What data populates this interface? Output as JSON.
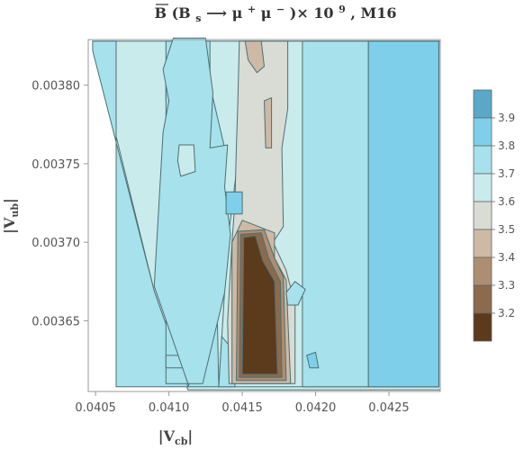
{
  "chart_data": {
    "type": "contour",
    "title_parts": {
      "base": "B",
      "open": "(B",
      "sub": "s",
      "arrow": " ⟶ μ",
      "plus": "+",
      "mu2": " μ",
      "minus": "−",
      "close": ")× 10",
      "exp": "9",
      "tail": ", M16"
    },
    "xlabel": {
      "main": "|V",
      "sub": "cb",
      "end": "|"
    },
    "ylabel": {
      "main": "|V",
      "sub": "ub",
      "end": "|"
    },
    "xlim": [
      0.04045,
      0.04285
    ],
    "ylim": [
      0.003605,
      0.003829
    ],
    "x_ticks": [
      {
        "value": 0.0405,
        "label": "0.0405"
      },
      {
        "value": 0.041,
        "label": "0.0410"
      },
      {
        "value": 0.0415,
        "label": "0.0415"
      },
      {
        "value": 0.042,
        "label": "0.0420"
      },
      {
        "value": 0.0425,
        "label": "0.0425"
      }
    ],
    "y_ticks": [
      {
        "value": 0.00365,
        "label": "0.00365"
      },
      {
        "value": 0.0037,
        "label": "0.00370"
      },
      {
        "value": 0.00375,
        "label": "0.00375"
      },
      {
        "value": 0.0038,
        "label": "0.00380"
      }
    ],
    "legend": {
      "placement": "right",
      "levels": [
        {
          "label": "3.9",
          "color": "#5aa8c8"
        },
        {
          "label": "3.8",
          "color": "#7ecfe9"
        },
        {
          "label": "3.7",
          "color": "#a6e1ec"
        },
        {
          "label": "3.6",
          "color": "#c9ebec"
        },
        {
          "label": "3.5",
          "color": "#d8dcd4"
        },
        {
          "label": "3.4",
          "color": "#cdb9a6"
        },
        {
          "label": "3.3",
          "color": "#ad8e73"
        },
        {
          "label": "3.2",
          "color": "#8b6a4e"
        },
        {
          "label": "",
          "color": "#5c3a1c"
        }
      ]
    },
    "regions": [
      {
        "level": "3.6",
        "color": "#c9ebec",
        "points": [
          [
            0.04048,
            0.003828
          ],
          [
            0.04285,
            0.003828
          ],
          [
            0.04285,
            0.003606
          ],
          [
            0.04113,
            0.003606
          ],
          [
            0.0409,
            0.003669
          ]
        ]
      },
      {
        "level": "3.7",
        "color": "#a6e1ec",
        "points": [
          [
            0.04048,
            0.003828
          ],
          [
            0.04064,
            0.003828
          ],
          [
            0.04064,
            0.003608
          ],
          [
            0.04113,
            0.003608
          ],
          [
            0.0409,
            0.003669
          ],
          [
            0.04048,
            0.003822
          ]
        ]
      },
      {
        "level": "3.7",
        "color": "#a6e1ec",
        "points": [
          [
            0.04098,
            0.003828
          ],
          [
            0.04128,
            0.003828
          ],
          [
            0.04128,
            0.0038
          ],
          [
            0.04118,
            0.00379
          ],
          [
            0.04098,
            0.00379
          ]
        ]
      },
      {
        "level": "3.7",
        "color": "#a6e1ec",
        "points": [
          [
            0.04098,
            0.0038
          ],
          [
            0.04098,
            0.00361
          ],
          [
            0.04128,
            0.00361
          ],
          [
            0.04128,
            0.00368
          ],
          [
            0.04135,
            0.00372
          ],
          [
            0.04138,
            0.00376
          ],
          [
            0.04128,
            0.0038
          ]
        ]
      },
      {
        "level": "3.6",
        "color": "#c9ebec",
        "points": [
          [
            0.0415,
            0.003828
          ],
          [
            0.04284,
            0.003828
          ],
          [
            0.04284,
            0.003608
          ],
          [
            0.04134,
            0.003608
          ],
          [
            0.0414,
            0.0037
          ],
          [
            0.04148,
            0.00376
          ]
        ]
      },
      {
        "level": "3.7",
        "color": "#a6e1ec",
        "points": [
          [
            0.04236,
            0.003828
          ],
          [
            0.04284,
            0.003828
          ],
          [
            0.04284,
            0.003608
          ],
          [
            0.04236,
            0.003608
          ]
        ]
      },
      {
        "level": "3.7",
        "color": "#a6e1ec",
        "points": [
          [
            0.04191,
            0.003828
          ],
          [
            0.04236,
            0.003828
          ],
          [
            0.04236,
            0.003608
          ],
          [
            0.04191,
            0.003608
          ]
        ]
      },
      {
        "level": "3.7",
        "color": "#a6e1ec",
        "points": [
          [
            0.04113,
            0.003608
          ],
          [
            0.04134,
            0.003608
          ],
          [
            0.04133,
            0.00365
          ],
          [
            0.04118,
            0.00362
          ]
        ]
      },
      {
        "level": "3.7",
        "color": "#a6e1ec",
        "points": [
          [
            0.04134,
            0.003608
          ],
          [
            0.04145,
            0.003608
          ],
          [
            0.04145,
            0.00363
          ],
          [
            0.04136,
            0.00364
          ]
        ]
      },
      {
        "level": "3.7",
        "color": "#a6e1ec",
        "points": [
          [
            0.04098,
            0.003628
          ],
          [
            0.04112,
            0.003628
          ],
          [
            0.04112,
            0.00362
          ],
          [
            0.04098,
            0.00362
          ]
        ]
      },
      {
        "level": "3.8",
        "color": "#7ecfe9",
        "points": [
          [
            0.04236,
            0.003828
          ],
          [
            0.04284,
            0.003828
          ],
          [
            0.04284,
            0.003608
          ],
          [
            0.04236,
            0.003608
          ]
        ]
      },
      {
        "level": "3.7",
        "color": "#a6e1ec",
        "points": [
          [
            0.04096,
            0.00381
          ],
          [
            0.04103,
            0.00383
          ],
          [
            0.04125,
            0.00383
          ],
          [
            0.0413,
            0.003795
          ],
          [
            0.04128,
            0.00376
          ],
          [
            0.0414,
            0.003762
          ],
          [
            0.04138,
            0.003735
          ],
          [
            0.04142,
            0.003705
          ],
          [
            0.04138,
            0.003668
          ],
          [
            0.04123,
            0.00361
          ],
          [
            0.04113,
            0.00361
          ],
          [
            0.0409,
            0.003672
          ],
          [
            0.04096,
            0.00377
          ],
          [
            0.041,
            0.00379
          ]
        ]
      },
      {
        "level": "3.6",
        "color": "#c9ebec",
        "points": [
          [
            0.04107,
            0.003762
          ],
          [
            0.04117,
            0.003762
          ],
          [
            0.04118,
            0.003745
          ],
          [
            0.04108,
            0.003742
          ],
          [
            0.04106,
            0.003752
          ]
        ]
      },
      {
        "level": "3.5",
        "color": "#d8dcd4",
        "points": [
          [
            0.04148,
            0.003828
          ],
          [
            0.04181,
            0.003828
          ],
          [
            0.04181,
            0.003785
          ],
          [
            0.04177,
            0.00376
          ],
          [
            0.04178,
            0.00371
          ],
          [
            0.04171,
            0.0037
          ],
          [
            0.0418,
            0.003682
          ],
          [
            0.04186,
            0.00366
          ],
          [
            0.04186,
            0.00361
          ],
          [
            0.04141,
            0.00361
          ],
          [
            0.0414,
            0.00365
          ],
          [
            0.04143,
            0.0037
          ],
          [
            0.04145,
            0.003725
          ],
          [
            0.04146,
            0.00376
          ],
          [
            0.04147,
            0.00379
          ]
        ]
      },
      {
        "level": "3.8",
        "color": "#7ecfe9",
        "points": [
          [
            0.04139,
            0.003718
          ],
          [
            0.0415,
            0.003718
          ],
          [
            0.0415,
            0.003732
          ],
          [
            0.04139,
            0.003732
          ]
        ]
      },
      {
        "level": "3.4",
        "color": "#cdb9a6",
        "points": [
          [
            0.04152,
            0.003828
          ],
          [
            0.04163,
            0.003828
          ],
          [
            0.04165,
            0.003812
          ],
          [
            0.0416,
            0.003808
          ],
          [
            0.04154,
            0.003816
          ]
        ]
      },
      {
        "level": "3.4",
        "color": "#cdb9a6",
        "points": [
          [
            0.04165,
            0.00379
          ],
          [
            0.0417,
            0.003792
          ],
          [
            0.0417,
            0.00376
          ],
          [
            0.04166,
            0.00376
          ]
        ]
      },
      {
        "level": "3.4",
        "color": "#cdb9a6",
        "points": [
          [
            0.04143,
            0.0037
          ],
          [
            0.0415,
            0.003714
          ],
          [
            0.04172,
            0.003706
          ],
          [
            0.04172,
            0.00369
          ],
          [
            0.0418,
            0.003676
          ],
          [
            0.04183,
            0.00361
          ],
          [
            0.04143,
            0.00361
          ]
        ]
      },
      {
        "level": "3.3",
        "color": "#ad8e73",
        "points": [
          [
            0.04147,
            0.003707
          ],
          [
            0.04165,
            0.003708
          ],
          [
            0.04172,
            0.00369
          ],
          [
            0.04178,
            0.003678
          ],
          [
            0.0418,
            0.003612
          ],
          [
            0.04146,
            0.003612
          ]
        ]
      },
      {
        "level": "3.2",
        "color": "#8b6a4e",
        "points": [
          [
            0.04149,
            0.003705
          ],
          [
            0.04163,
            0.003706
          ],
          [
            0.04168,
            0.00369
          ],
          [
            0.04176,
            0.003675
          ],
          [
            0.04177,
            0.003614
          ],
          [
            0.04148,
            0.003614
          ]
        ]
      },
      {
        "level": "3.1",
        "color": "#5c3a1c",
        "points": [
          [
            0.04151,
            0.003703
          ],
          [
            0.04159,
            0.003704
          ],
          [
            0.04164,
            0.003688
          ],
          [
            0.04172,
            0.003675
          ],
          [
            0.04174,
            0.003616
          ],
          [
            0.0415,
            0.003616
          ]
        ]
      },
      {
        "level": "3.7",
        "color": "#a6e1ec",
        "points": [
          [
            0.0418,
            0.003668
          ],
          [
            0.04186,
            0.003675
          ],
          [
            0.04193,
            0.00367
          ],
          [
            0.04188,
            0.00366
          ],
          [
            0.04181,
            0.00366
          ]
        ]
      },
      {
        "level": "3.8",
        "color": "#7ecfe9",
        "points": [
          [
            0.04194,
            0.003628
          ],
          [
            0.042,
            0.00363
          ],
          [
            0.04202,
            0.00362
          ],
          [
            0.04196,
            0.00362
          ]
        ]
      }
    ]
  }
}
